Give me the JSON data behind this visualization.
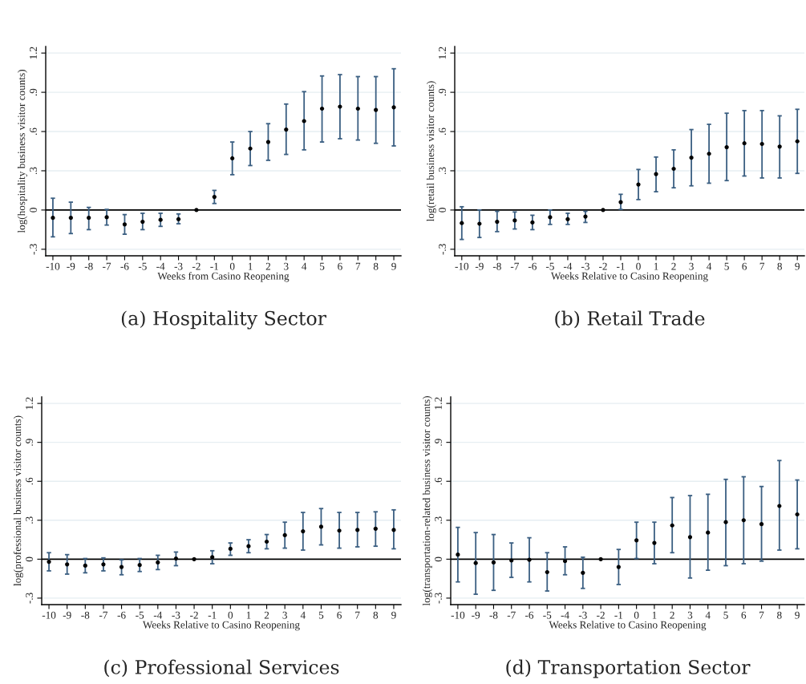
{
  "chart_data": [
    {
      "type": "scatter",
      "title": "(a) Hospitality Sector",
      "xlabel": "Weeks from Casino Reopening",
      "ylabel": "log(hospitality business visitor counts)",
      "x": [
        -10,
        -9,
        -8,
        -7,
        -6,
        -5,
        -4,
        -3,
        -2,
        -1,
        0,
        1,
        2,
        3,
        4,
        5,
        6,
        7,
        8,
        9
      ],
      "series": [
        {
          "color": "#000000",
          "values": [
            -0.06,
            -0.06,
            -0.06,
            -0.055,
            -0.11,
            -0.09,
            -0.075,
            -0.07,
            0,
            0.1,
            0.395,
            0.47,
            0.52,
            0.615,
            0.68,
            0.775,
            0.79,
            0.775,
            0.765,
            0.785
          ],
          "errors": [
            [
              -0.205,
              0.09
            ],
            [
              -0.18,
              0.06
            ],
            [
              -0.15,
              0.02
            ],
            [
              -0.115,
              0.005
            ],
            [
              -0.185,
              -0.035
            ],
            [
              -0.15,
              -0.025
            ],
            [
              -0.125,
              -0.025
            ],
            [
              -0.105,
              -0.03
            ],
            null,
            [
              0.05,
              0.15
            ],
            [
              0.27,
              0.52
            ],
            [
              0.34,
              0.6
            ],
            [
              0.38,
              0.66
            ],
            [
              0.425,
              0.81
            ],
            [
              0.46,
              0.905
            ],
            [
              0.52,
              1.025
            ],
            [
              0.545,
              1.035
            ],
            [
              0.535,
              1.02
            ],
            [
              0.51,
              1.02
            ],
            [
              0.49,
              1.08
            ]
          ]
        }
      ],
      "xlim": [
        -10.4,
        9.4
      ],
      "xticks": [
        -10,
        -9,
        -8,
        -7,
        -6,
        -5,
        -4,
        -3,
        -2,
        -1,
        0,
        1,
        2,
        3,
        4,
        5,
        6,
        7,
        8,
        9
      ],
      "ylim": [
        -0.35,
        1.25
      ],
      "yticks": [
        {
          "value": -0.3,
          "label": "-.3"
        },
        0,
        {
          "value": 0.3,
          "label": ".3"
        },
        {
          "value": 0.6,
          "label": ".6"
        },
        {
          "value": 0.9,
          "label": ".9"
        },
        1.2
      ],
      "ref_lines": [
        {
          "axis": "y",
          "value": 0,
          "color": "#000000"
        }
      ],
      "grid": "y",
      "marker": "circle"
    },
    {
      "type": "scatter",
      "title": "(b) Retail Trade",
      "xlabel": "Weeks Relative to Casino Reopening",
      "ylabel": "log(retail business visitor counts)",
      "x": [
        -10,
        -9,
        -8,
        -7,
        -6,
        -5,
        -4,
        -3,
        -2,
        -1,
        0,
        1,
        2,
        3,
        4,
        5,
        6,
        7,
        8,
        9
      ],
      "series": [
        {
          "color": "#000000",
          "values": [
            -0.1,
            -0.105,
            -0.09,
            -0.08,
            -0.095,
            -0.055,
            -0.07,
            -0.05,
            0,
            0.06,
            0.195,
            0.275,
            0.315,
            0.4,
            0.43,
            0.48,
            0.51,
            0.505,
            0.485,
            0.525
          ],
          "errors": [
            [
              -0.225,
              0.025
            ],
            [
              -0.21,
              0.0
            ],
            [
              -0.165,
              -0.01
            ],
            [
              -0.145,
              -0.015
            ],
            [
              -0.15,
              -0.04
            ],
            [
              -0.11,
              0.0
            ],
            [
              -0.11,
              -0.025
            ],
            [
              -0.095,
              -0.01
            ],
            null,
            [
              0.005,
              0.12
            ],
            [
              0.08,
              0.31
            ],
            [
              0.14,
              0.405
            ],
            [
              0.17,
              0.46
            ],
            [
              0.185,
              0.615
            ],
            [
              0.205,
              0.655
            ],
            [
              0.225,
              0.74
            ],
            [
              0.26,
              0.76
            ],
            [
              0.245,
              0.76
            ],
            [
              0.245,
              0.72
            ],
            [
              0.28,
              0.77
            ]
          ]
        }
      ],
      "xlim": [
        -10.4,
        9.4
      ],
      "xticks": [
        -10,
        -9,
        -8,
        -7,
        -6,
        -5,
        -4,
        -3,
        -2,
        -1,
        0,
        1,
        2,
        3,
        4,
        5,
        6,
        7,
        8,
        9
      ],
      "ylim": [
        -0.35,
        1.25
      ],
      "yticks": [
        {
          "value": -0.3,
          "label": "-.3"
        },
        0,
        {
          "value": 0.3,
          "label": ".3"
        },
        {
          "value": 0.6,
          "label": ".6"
        },
        {
          "value": 0.9,
          "label": ".9"
        },
        1.2
      ],
      "ref_lines": [
        {
          "axis": "y",
          "value": 0,
          "color": "#000000"
        }
      ],
      "grid": "y",
      "marker": "circle"
    },
    {
      "type": "scatter",
      "title": "(c) Professional Services",
      "xlabel": "Weeks Relative to Casino Reopening",
      "ylabel": "log(professional business visitor counts)",
      "x": [
        -10,
        -9,
        -8,
        -7,
        -6,
        -5,
        -4,
        -3,
        -2,
        -1,
        0,
        1,
        2,
        3,
        4,
        5,
        6,
        7,
        8,
        9
      ],
      "series": [
        {
          "color": "#000000",
          "values": [
            -0.02,
            -0.04,
            -0.05,
            -0.04,
            -0.06,
            -0.045,
            -0.025,
            0.005,
            0,
            0.015,
            0.08,
            0.1,
            0.135,
            0.185,
            0.215,
            0.25,
            0.22,
            0.225,
            0.235,
            0.225
          ],
          "errors": [
            [
              -0.09,
              0.05
            ],
            [
              -0.115,
              0.035
            ],
            [
              -0.105,
              0.005
            ],
            [
              -0.09,
              0.01
            ],
            [
              -0.12,
              -0.005
            ],
            [
              -0.095,
              0.005
            ],
            [
              -0.08,
              0.03
            ],
            [
              -0.05,
              0.055
            ],
            null,
            [
              -0.035,
              0.065
            ],
            [
              0.03,
              0.125
            ],
            [
              0.05,
              0.15
            ],
            [
              0.08,
              0.19
            ],
            [
              0.085,
              0.285
            ],
            [
              0.07,
              0.36
            ],
            [
              0.11,
              0.39
            ],
            [
              0.085,
              0.36
            ],
            [
              0.095,
              0.36
            ],
            [
              0.1,
              0.365
            ],
            [
              0.08,
              0.38
            ]
          ]
        }
      ],
      "xlim": [
        -10.4,
        9.4
      ],
      "xticks": [
        -10,
        -9,
        -8,
        -7,
        -6,
        -5,
        -4,
        -3,
        -2,
        -1,
        0,
        1,
        2,
        3,
        4,
        5,
        6,
        7,
        8,
        9
      ],
      "ylim": [
        -0.35,
        1.25
      ],
      "yticks": [
        {
          "value": -0.3,
          "label": "-.3"
        },
        0,
        {
          "value": 0.3,
          "label": ".3"
        },
        {
          "value": 0.6,
          "label": ".6"
        },
        {
          "value": 0.9,
          "label": ".9"
        },
        1.2
      ],
      "ref_lines": [
        {
          "axis": "y",
          "value": 0,
          "color": "#000000"
        }
      ],
      "grid": "y",
      "marker": "circle"
    },
    {
      "type": "scatter",
      "title": "(d) Transportation Sector",
      "xlabel": "Weeks Relative to Casino Reopening",
      "ylabel": "log(transportation-related business visitor counts)",
      "x": [
        -10,
        -9,
        -8,
        -7,
        -6,
        -5,
        -4,
        -3,
        -2,
        -1,
        0,
        1,
        2,
        3,
        4,
        5,
        6,
        7,
        8,
        9
      ],
      "series": [
        {
          "color": "#000000",
          "values": [
            0.035,
            -0.03,
            -0.025,
            -0.01,
            -0.005,
            -0.1,
            -0.015,
            -0.105,
            0,
            -0.06,
            0.145,
            0.125,
            0.26,
            0.17,
            0.205,
            0.285,
            0.3,
            0.27,
            0.41,
            0.345
          ],
          "errors": [
            [
              -0.175,
              0.245
            ],
            [
              -0.27,
              0.205
            ],
            [
              -0.24,
              0.19
            ],
            [
              -0.14,
              0.125
            ],
            [
              -0.175,
              0.165
            ],
            [
              -0.245,
              0.05
            ],
            [
              -0.12,
              0.095
            ],
            [
              -0.225,
              0.015
            ],
            null,
            [
              -0.195,
              0.075
            ],
            [
              0.005,
              0.285
            ],
            [
              -0.035,
              0.285
            ],
            [
              0.05,
              0.475
            ],
            [
              -0.145,
              0.49
            ],
            [
              -0.085,
              0.5
            ],
            [
              -0.05,
              0.615
            ],
            [
              -0.035,
              0.635
            ],
            [
              -0.015,
              0.56
            ],
            [
              0.07,
              0.76
            ],
            [
              0.08,
              0.61
            ]
          ]
        }
      ],
      "xlim": [
        -10.4,
        9.4
      ],
      "xticks": [
        -10,
        -9,
        -8,
        -7,
        -6,
        -5,
        -4,
        -3,
        -2,
        -1,
        0,
        1,
        2,
        3,
        4,
        5,
        6,
        7,
        8,
        9
      ],
      "ylim": [
        -0.35,
        1.25
      ],
      "yticks": [
        {
          "value": -0.3,
          "label": "-.3"
        },
        0,
        {
          "value": 0.3,
          "label": ".3"
        },
        {
          "value": 0.6,
          "label": ".6"
        },
        {
          "value": 0.9,
          "label": ".9"
        },
        1.2
      ],
      "ref_lines": [
        {
          "axis": "y",
          "value": 0,
          "color": "#000000"
        }
      ],
      "grid": "y",
      "marker": "circle"
    }
  ]
}
